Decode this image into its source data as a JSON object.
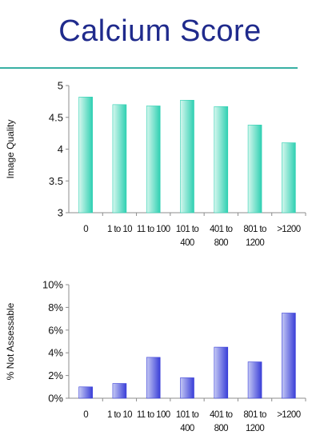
{
  "title": "Calcium Score",
  "colors": {
    "title": "#1f2a8c",
    "rule": "#38b0a4",
    "teal_bar_light": "#d6f7ee",
    "teal_bar_dark": "#2fd0b2",
    "blue_bar_light": "#c5c9f4",
    "blue_bar_dark": "#3a3fd8"
  },
  "chart_data": [
    {
      "type": "bar",
      "ylabel": "Image Quality",
      "xlabel": "",
      "ylim": [
        3,
        5
      ],
      "y_ticks": [
        "3",
        "3.5",
        "4",
        "4.5",
        "5"
      ],
      "grid": false,
      "categories": [
        [
          "0"
        ],
        [
          "1 to 10"
        ],
        [
          "11 to 100"
        ],
        [
          "101 to",
          "400"
        ],
        [
          "401 to",
          "800"
        ],
        [
          "801 to",
          "1200"
        ],
        [
          ">1200"
        ]
      ],
      "values": [
        4.82,
        4.7,
        4.68,
        4.77,
        4.67,
        4.38,
        4.1
      ]
    },
    {
      "type": "bar",
      "ylabel": "% Not Assessable",
      "xlabel": "",
      "ylim": [
        0,
        10
      ],
      "y_ticks": [
        "0%",
        "2%",
        "4%",
        "6%",
        "8%",
        "10%"
      ],
      "grid": false,
      "categories": [
        [
          "0"
        ],
        [
          "1 to 10"
        ],
        [
          "11 to 100"
        ],
        [
          "101 to",
          "400"
        ],
        [
          "401 to",
          "800"
        ],
        [
          "801 to",
          "1200"
        ],
        [
          ">1200"
        ]
      ],
      "values": [
        1.0,
        1.3,
        3.6,
        1.8,
        4.5,
        3.2,
        7.5
      ]
    }
  ]
}
